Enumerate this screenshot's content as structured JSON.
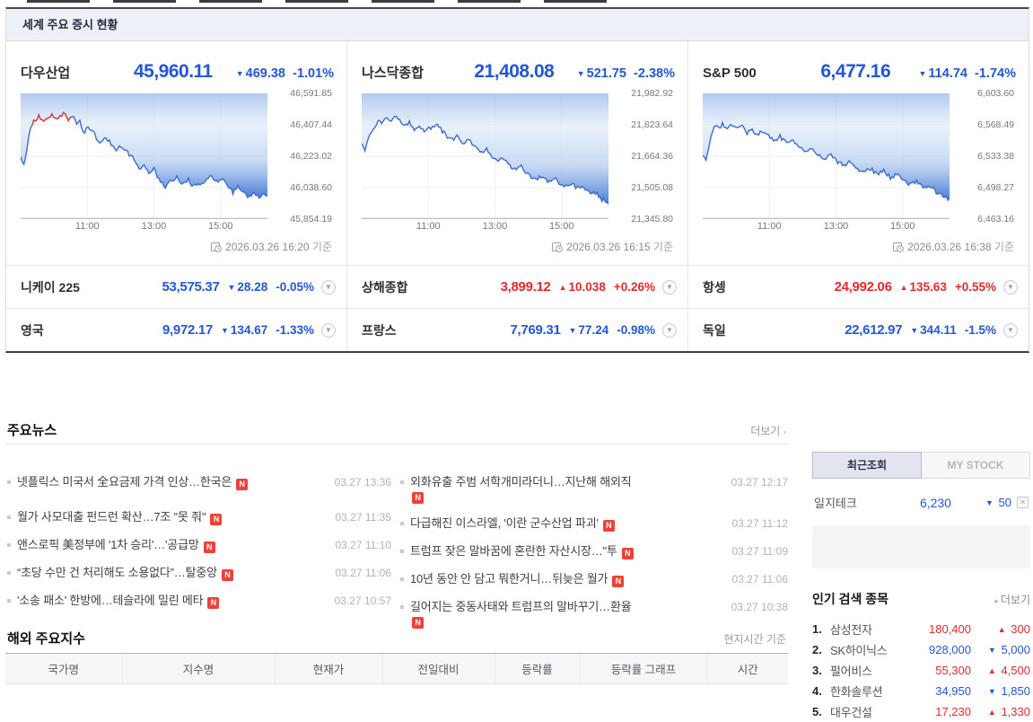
{
  "colors": {
    "up": "#e8282c",
    "down": "#2257d8",
    "chart_line": "#3b6cd4",
    "chart_line_up": "#e23b3b",
    "badge": "#ef4137"
  },
  "world_markets": {
    "title": "세계 주요 증시 현황",
    "panels": [
      {
        "name": "다우산업",
        "price": "45,960.11",
        "dir": "down",
        "change": "469.38",
        "pct": "-1.01%",
        "timestamp": "2026.03.26 16:20",
        "timestamp_suffix": "기준"
      },
      {
        "name": "나스닥종합",
        "price": "21,408.08",
        "dir": "down",
        "change": "521.75",
        "pct": "-2.38%",
        "timestamp": "2026.03.26 16:15",
        "timestamp_suffix": "기준"
      },
      {
        "name": "S&P 500",
        "price": "6,477.16",
        "dir": "down",
        "change": "114.74",
        "pct": "-1.74%",
        "timestamp": "2026.03.26 16:38",
        "timestamp_suffix": "기준"
      }
    ],
    "rows": [
      [
        {
          "name": "니케이 225",
          "price": "53,575.37",
          "dir": "down",
          "change": "28.28",
          "pct": "-0.05%"
        },
        {
          "name": "상해종합",
          "price": "3,899.12",
          "dir": "up",
          "change": "10.038",
          "pct": "+0.26%"
        },
        {
          "name": "항셍",
          "price": "24,992.06",
          "dir": "up",
          "change": "135.63",
          "pct": "+0.55%"
        }
      ],
      [
        {
          "name": "영국",
          "price": "9,972.17",
          "dir": "down",
          "change": "134.67",
          "pct": "-1.33%"
        },
        {
          "name": "프랑스",
          "price": "7,769.31",
          "dir": "down",
          "change": "77.24",
          "pct": "-0.98%"
        },
        {
          "name": "독일",
          "price": "22,612.97",
          "dir": "down",
          "change": "344.11",
          "pct": "-1.5%"
        }
      ]
    ]
  },
  "chart_data": [
    {
      "type": "line",
      "title": "다우산업",
      "x_ticks": [
        "11:00",
        "13:00",
        "15:00"
      ],
      "x_tick_pos": [
        27,
        54,
        81
      ],
      "y_ticks": [
        "46,591.85",
        "46,407.44",
        "46,223.02",
        "46,038.60",
        "45,854.19"
      ],
      "ylim": [
        45854.19,
        46591.85
      ],
      "grid": true,
      "timestamp": "2026.03.26 16:20",
      "red_segment": [
        14,
        62
      ],
      "anchors": [
        [
          0,
          72
        ],
        [
          4,
          80
        ],
        [
          8,
          60
        ],
        [
          12,
          38
        ],
        [
          16,
          30
        ],
        [
          22,
          26
        ],
        [
          30,
          30
        ],
        [
          38,
          24
        ],
        [
          44,
          28
        ],
        [
          52,
          22
        ],
        [
          58,
          30
        ],
        [
          62,
          24
        ],
        [
          68,
          34
        ],
        [
          72,
          30
        ],
        [
          76,
          44
        ],
        [
          82,
          38
        ],
        [
          88,
          42
        ],
        [
          96,
          56
        ],
        [
          102,
          50
        ],
        [
          108,
          54
        ],
        [
          116,
          62
        ],
        [
          122,
          58
        ],
        [
          130,
          66
        ],
        [
          138,
          74
        ],
        [
          144,
          86
        ],
        [
          150,
          80
        ],
        [
          156,
          90
        ],
        [
          162,
          84
        ],
        [
          168,
          96
        ],
        [
          176,
          104
        ],
        [
          182,
          98
        ],
        [
          190,
          94
        ],
        [
          196,
          100
        ],
        [
          204,
          96
        ],
        [
          210,
          104
        ],
        [
          218,
          100
        ],
        [
          226,
          96
        ],
        [
          232,
          92
        ],
        [
          238,
          98
        ],
        [
          244,
          94
        ],
        [
          252,
          104
        ],
        [
          258,
          110
        ],
        [
          264,
          104
        ],
        [
          272,
          112
        ],
        [
          278,
          116
        ],
        [
          284,
          110
        ],
        [
          290,
          116
        ],
        [
          296,
          112
        ],
        [
          300,
          114
        ]
      ]
    },
    {
      "type": "line",
      "title": "나스닥종합",
      "x_ticks": [
        "11:00",
        "13:00",
        "15:00"
      ],
      "x_tick_pos": [
        27,
        54,
        81
      ],
      "y_ticks": [
        "21,982.92",
        "21,823.64",
        "21,664.36",
        "21,505.08",
        "21,345.80"
      ],
      "ylim": [
        21345.8,
        21982.92
      ],
      "grid": true,
      "timestamp": "2026.03.26 16:15",
      "red_segment": null,
      "anchors": [
        [
          0,
          58
        ],
        [
          4,
          62
        ],
        [
          8,
          50
        ],
        [
          12,
          42
        ],
        [
          16,
          36
        ],
        [
          20,
          30
        ],
        [
          24,
          34
        ],
        [
          28,
          28
        ],
        [
          34,
          32
        ],
        [
          40,
          26
        ],
        [
          46,
          30
        ],
        [
          52,
          36
        ],
        [
          58,
          32
        ],
        [
          64,
          40
        ],
        [
          70,
          36
        ],
        [
          76,
          42
        ],
        [
          84,
          38
        ],
        [
          90,
          34
        ],
        [
          96,
          40
        ],
        [
          102,
          46
        ],
        [
          110,
          52
        ],
        [
          116,
          48
        ],
        [
          124,
          56
        ],
        [
          130,
          52
        ],
        [
          138,
          60
        ],
        [
          146,
          66
        ],
        [
          152,
          62
        ],
        [
          158,
          70
        ],
        [
          166,
          76
        ],
        [
          172,
          72
        ],
        [
          180,
          80
        ],
        [
          188,
          86
        ],
        [
          194,
          82
        ],
        [
          202,
          90
        ],
        [
          210,
          96
        ],
        [
          218,
          92
        ],
        [
          226,
          98
        ],
        [
          234,
          94
        ],
        [
          240,
          100
        ],
        [
          248,
          104
        ],
        [
          254,
          100
        ],
        [
          262,
          106
        ],
        [
          270,
          104
        ],
        [
          278,
          110
        ],
        [
          286,
          112
        ],
        [
          292,
          118
        ],
        [
          300,
          122
        ]
      ]
    },
    {
      "type": "line",
      "title": "S&P 500",
      "x_ticks": [
        "11:00",
        "13:00",
        "15:00"
      ],
      "x_tick_pos": [
        27,
        54,
        81
      ],
      "y_ticks": [
        "6,603.60",
        "6,568.49",
        "6,533.38",
        "6,498.27",
        "6,463.16"
      ],
      "ylim": [
        6463.16,
        6603.6
      ],
      "grid": true,
      "timestamp": "2026.03.26 16:38",
      "red_segment": null,
      "anchors": [
        [
          0,
          70
        ],
        [
          4,
          74
        ],
        [
          8,
          56
        ],
        [
          12,
          42
        ],
        [
          16,
          36
        ],
        [
          20,
          40
        ],
        [
          24,
          34
        ],
        [
          30,
          38
        ],
        [
          36,
          34
        ],
        [
          42,
          40
        ],
        [
          48,
          36
        ],
        [
          54,
          44
        ],
        [
          60,
          40
        ],
        [
          66,
          46
        ],
        [
          74,
          42
        ],
        [
          80,
          48
        ],
        [
          88,
          52
        ],
        [
          94,
          48
        ],
        [
          102,
          56
        ],
        [
          110,
          52
        ],
        [
          118,
          60
        ],
        [
          126,
          64
        ],
        [
          132,
          60
        ],
        [
          140,
          68
        ],
        [
          148,
          72
        ],
        [
          156,
          68
        ],
        [
          164,
          76
        ],
        [
          172,
          80
        ],
        [
          180,
          76
        ],
        [
          188,
          84
        ],
        [
          196,
          88
        ],
        [
          204,
          84
        ],
        [
          212,
          90
        ],
        [
          220,
          86
        ],
        [
          228,
          94
        ],
        [
          236,
          90
        ],
        [
          244,
          98
        ],
        [
          252,
          102
        ],
        [
          260,
          98
        ],
        [
          268,
          106
        ],
        [
          276,
          102
        ],
        [
          284,
          110
        ],
        [
          292,
          114
        ],
        [
          300,
          118
        ]
      ]
    }
  ],
  "news": {
    "title": "주요뉴스",
    "more": "더보기",
    "columns": [
      [
        {
          "title": "넷플릭스 미국서 全요금제 가격 인상…한국은",
          "badge": true,
          "badge_newline": false,
          "time": "03.27 13:36",
          "gap_after": true
        },
        {
          "title": "월가 사모대출 펀드런 확산…7조 \"못 줘\"",
          "badge": true,
          "badge_newline": false,
          "time": "03.27 11:35",
          "gap_after": false
        },
        {
          "title": "앤스로픽 美정부에 '1차 승리'…'공급망",
          "badge": true,
          "badge_newline": false,
          "time": "03.27 11:10",
          "gap_after": false
        },
        {
          "title": "“초당 수만 건 처리해도 소용없다”…탈중앙",
          "badge": true,
          "badge_newline": false,
          "time": "03.27 11:06",
          "gap_after": false
        },
        {
          "title": "'소송 패소' 한방에…테슬라에 밀린 메타",
          "badge": true,
          "badge_newline": false,
          "time": "03.27 10:57",
          "gap_after": false
        }
      ],
      [
        {
          "title": "외화유출 주범 서학개미라더니…지난해 해외직",
          "badge": true,
          "badge_newline": true,
          "time": "03.27 12:17",
          "gap_after": false
        },
        {
          "title": "다급해진 이스라엘, '이란 군수산업 파괴'",
          "badge": true,
          "badge_newline": false,
          "time": "03.27 11:12",
          "gap_after": false
        },
        {
          "title": "트럼프 잦은 말바꿈에 혼란한 자산시장…\"투",
          "badge": true,
          "badge_newline": false,
          "time": "03.27 11:09",
          "gap_after": false
        },
        {
          "title": "10년 동안 안 담고 뭐한거니…뒤늦은 월가",
          "badge": true,
          "badge_newline": false,
          "time": "03.27 11:06",
          "gap_after": false
        },
        {
          "title": "길어지는 중동사태와 트럼프의 말바꾸기…환율",
          "badge": true,
          "badge_newline": true,
          "time": "03.27 10:38",
          "gap_after": false
        }
      ]
    ]
  },
  "sidebar": {
    "tabs": [
      {
        "label": "최근조회",
        "active": true
      },
      {
        "label": "MY STOCK",
        "active": false
      }
    ],
    "recent_stock": {
      "name": "일지테크",
      "price": "6,230",
      "dir": "down",
      "change": "50"
    },
    "popular": {
      "title": "인기 검색 종목",
      "more": "더보기",
      "items": [
        {
          "rank": "1.",
          "name": "삼성전자",
          "price": "180,400",
          "dir": "up",
          "change": "300"
        },
        {
          "rank": "2.",
          "name": "SK하이닉스",
          "price": "928,000",
          "dir": "down",
          "change": "5,000"
        },
        {
          "rank": "3.",
          "name": "펄어비스",
          "price": "55,300",
          "dir": "up",
          "change": "4,500"
        },
        {
          "rank": "4.",
          "name": "한화솔루션",
          "price": "34,950",
          "dir": "down",
          "change": "1,850"
        },
        {
          "rank": "5.",
          "name": "대우건설",
          "price": "17,230",
          "dir": "up",
          "change": "1,330"
        }
      ]
    }
  },
  "overseas": {
    "title": "해외 주요지수",
    "note": "현지시간 기준",
    "headers": [
      "국가명",
      "지수명",
      "현재가",
      "전일대비",
      "등락률",
      "등락률 그래프",
      "시간"
    ]
  }
}
